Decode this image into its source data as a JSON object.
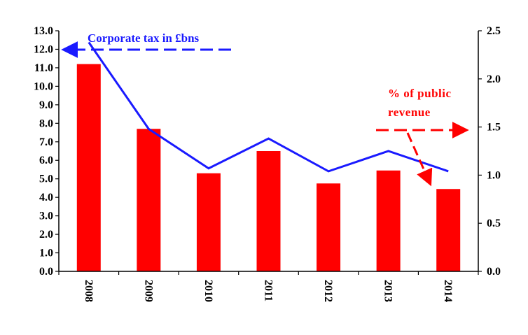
{
  "colors": {
    "bars": "#ff0000",
    "line": "#1a1aff",
    "axis": "#000000"
  },
  "chart_data": {
    "type": "bar",
    "categories": [
      "2008",
      "2009",
      "2010",
      "2011",
      "2012",
      "2013",
      "2014"
    ],
    "series": [
      {
        "type": "bar",
        "axis": "left",
        "values": [
          11.2,
          7.7,
          5.3,
          6.5,
          4.75,
          5.45,
          4.45
        ]
      },
      {
        "type": "line",
        "axis": "right",
        "values": [
          2.38,
          1.48,
          1.07,
          1.38,
          1.04,
          1.25,
          1.04
        ]
      }
    ],
    "left_axis": {
      "range": [
        0,
        13
      ],
      "ticks": [
        "0.0",
        "1.0",
        "2.0",
        "3.0",
        "4.0",
        "5.0",
        "6.0",
        "7.0",
        "8.0",
        "9.0",
        "10.0",
        "11.0",
        "12.0",
        "13.0"
      ]
    },
    "right_axis": {
      "range": [
        0,
        2.5
      ],
      "ticks": [
        "0.0",
        "0.5",
        "1.0",
        "1.5",
        "2.0",
        "2.5"
      ]
    },
    "annotations": {
      "left": "Corporate tax in £bns",
      "right_line1": "% of public",
      "right_line2": "revenue"
    },
    "grid": false
  }
}
